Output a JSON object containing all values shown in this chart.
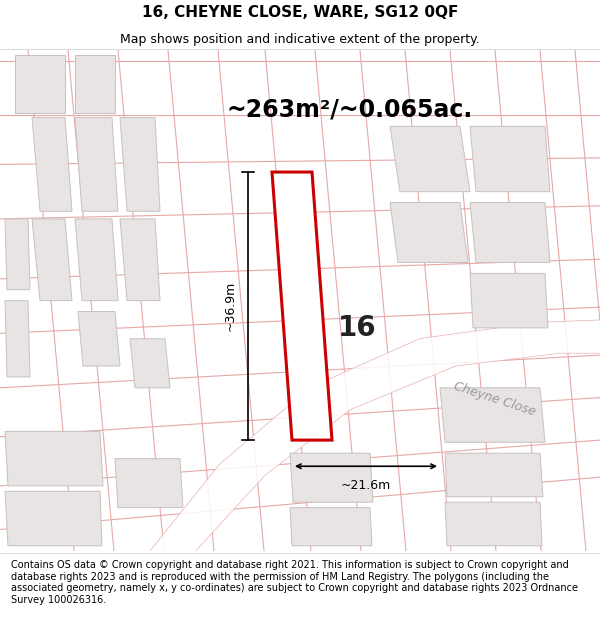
{
  "title_line1": "16, CHEYNE CLOSE, WARE, SG12 0QF",
  "title_line2": "Map shows position and indicative extent of the property.",
  "area_text": "~263m²/~0.065ac.",
  "plot_number": "16",
  "dim_width": "~21.6m",
  "dim_height": "~36.9m",
  "road_label": "Cheyne Close",
  "footer_text": "Contains OS data © Crown copyright and database right 2021. This information is subject to Crown copyright and database rights 2023 and is reproduced with the permission of HM Land Registry. The polygons (including the associated geometry, namely x, y co-ordinates) are subject to Crown copyright and database rights 2023 Ordnance Survey 100026316.",
  "map_bg": "#f7f3f3",
  "plot_fill": "#ffffff",
  "plot_edge": "#cc0000",
  "building_fill": "#e8e4e4",
  "building_edge": "#c8c0c0",
  "line_color": "#e8a8a8",
  "title_fontsize": 11,
  "subtitle_fontsize": 9,
  "area_fontsize": 17,
  "plot_label_fontsize": 20,
  "dim_fontsize": 9,
  "road_label_fontsize": 9,
  "footer_fontsize": 7.0
}
